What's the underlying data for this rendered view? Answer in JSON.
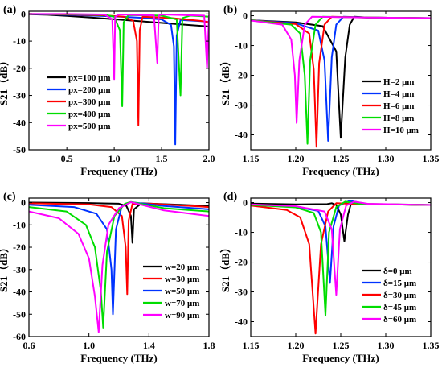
{
  "chart_data": [
    {
      "panel": "(a)",
      "type": "line",
      "xlabel": "Frequency (THz)",
      "ylabel": "S21（dB）",
      "xlim": [
        0.1,
        2.0
      ],
      "ylim": [
        -50,
        1
      ],
      "xticks": [
        0.5,
        1.0,
        1.5,
        2.0
      ],
      "xtick_labels": [
        "0.5",
        "1.0",
        "1.5",
        "2.0"
      ],
      "yticks": [
        0,
        -10,
        -20,
        -30,
        -40,
        -50
      ],
      "ytick_labels": [
        "0",
        "-10",
        "-20",
        "-30",
        "-40",
        "-50"
      ],
      "legend_position": "bottom-left",
      "series": [
        {
          "name": "px=100 μm",
          "color": "#000000",
          "points": [
            [
              0.1,
              -0.1
            ],
            [
              0.3,
              -0.3
            ],
            [
              0.5,
              -0.7
            ],
            [
              0.8,
              -1.4
            ],
            [
              1.1,
              -2.2
            ],
            [
              1.4,
              -3.0
            ],
            [
              1.7,
              -3.8
            ],
            [
              2.0,
              -4.6
            ]
          ]
        },
        {
          "name": "px=200 μm",
          "color": "#0033ff",
          "points": [
            [
              0.1,
              -0.05
            ],
            [
              0.5,
              -0.3
            ],
            [
              1.0,
              -0.9
            ],
            [
              1.3,
              -1.4
            ],
            [
              1.5,
              -2.0
            ],
            [
              1.6,
              -4.0
            ],
            [
              1.63,
              -12
            ],
            [
              1.645,
              -48
            ],
            [
              1.66,
              -8
            ],
            [
              1.7,
              -2.2
            ],
            [
              1.9,
              -2.6
            ],
            [
              2.0,
              -2.9
            ]
          ]
        },
        {
          "name": "px=300 μm",
          "color": "#ff0000",
          "points": [
            [
              0.1,
              0
            ],
            [
              0.5,
              -0.2
            ],
            [
              0.9,
              -0.5
            ],
            [
              1.1,
              -1.0
            ],
            [
              1.2,
              -2.5
            ],
            [
              1.24,
              -10
            ],
            [
              1.255,
              -41
            ],
            [
              1.27,
              -6
            ],
            [
              1.3,
              -1.0
            ],
            [
              1.6,
              -1.5
            ],
            [
              1.75,
              -2.0
            ],
            [
              1.9,
              -2.5
            ],
            [
              2.0,
              -3.0
            ]
          ]
        },
        {
          "name": "px=400 μm",
          "color": "#00dd00",
          "points": [
            [
              0.1,
              0
            ],
            [
              0.5,
              -0.1
            ],
            [
              0.9,
              -0.3
            ],
            [
              1.0,
              -1.0
            ],
            [
              1.06,
              -6
            ],
            [
              1.085,
              -34
            ],
            [
              1.1,
              -3
            ],
            [
              1.15,
              -0.4
            ],
            [
              1.5,
              -0.6
            ],
            [
              1.66,
              -2.0
            ],
            [
              1.7,
              -30
            ],
            [
              1.72,
              -1.5
            ],
            [
              1.8,
              -0.6
            ],
            [
              2.0,
              -1.0
            ]
          ]
        },
        {
          "name": "px=500 μm",
          "color": "#ff00ff",
          "points": [
            [
              0.1,
              0
            ],
            [
              0.5,
              0
            ],
            [
              0.9,
              -0.2
            ],
            [
              0.98,
              -2
            ],
            [
              1.0,
              -24
            ],
            [
              1.01,
              -1
            ],
            [
              1.05,
              -0.2
            ],
            [
              1.42,
              -0.5
            ],
            [
              1.455,
              -18
            ],
            [
              1.47,
              -0.6
            ],
            [
              1.5,
              -0.2
            ],
            [
              1.95,
              -0.6
            ],
            [
              1.98,
              -20
            ],
            [
              2.0,
              -0.5
            ]
          ]
        }
      ]
    },
    {
      "panel": "(b)",
      "type": "line",
      "xlabel": "Frequency (THz)",
      "ylabel": "S21（dB）",
      "xlim": [
        1.15,
        1.35
      ],
      "ylim": [
        -45,
        1.5
      ],
      "xticks": [
        1.15,
        1.2,
        1.25,
        1.3,
        1.35
      ],
      "xtick_labels": [
        "1.15",
        "1.20",
        "1.25",
        "1.30",
        "1.35"
      ],
      "yticks": [
        0,
        -10,
        -20,
        -30,
        -40
      ],
      "ytick_labels": [
        "0",
        "-10",
        "-20",
        "-30",
        "-40"
      ],
      "legend_position": "bottom-right",
      "series": [
        {
          "name": "H=2 μm",
          "color": "#000000",
          "points": [
            [
              1.15,
              -1.5
            ],
            [
              1.2,
              -2.2
            ],
            [
              1.23,
              -3.5
            ],
            [
              1.245,
              -12
            ],
            [
              1.25,
              -41
            ],
            [
              1.255,
              -14
            ],
            [
              1.26,
              -3
            ],
            [
              1.265,
              -0.3
            ],
            [
              1.28,
              -0.6
            ],
            [
              1.35,
              -0.8
            ]
          ]
        },
        {
          "name": "H=4 μm",
          "color": "#0033ff",
          "points": [
            [
              1.15,
              -1.5
            ],
            [
              1.2,
              -2.5
            ],
            [
              1.225,
              -5
            ],
            [
              1.232,
              -15
            ],
            [
              1.236,
              -42
            ],
            [
              1.24,
              -14
            ],
            [
              1.245,
              -3
            ],
            [
              1.253,
              -0.3
            ],
            [
              1.28,
              -0.6
            ],
            [
              1.35,
              -0.8
            ]
          ]
        },
        {
          "name": "H=6 μm",
          "color": "#ff0000",
          "points": [
            [
              1.15,
              -1.5
            ],
            [
              1.2,
              -2.8
            ],
            [
              1.215,
              -6
            ],
            [
              1.22,
              -18
            ],
            [
              1.223,
              -44
            ],
            [
              1.226,
              -16
            ],
            [
              1.232,
              -3
            ],
            [
              1.24,
              -0.3
            ],
            [
              1.28,
              -0.6
            ],
            [
              1.35,
              -0.8
            ]
          ]
        },
        {
          "name": "H=8 μm",
          "color": "#00dd00",
          "points": [
            [
              1.15,
              -1.5
            ],
            [
              1.195,
              -3
            ],
            [
              1.205,
              -6
            ],
            [
              1.21,
              -20
            ],
            [
              1.213,
              -43
            ],
            [
              1.216,
              -15
            ],
            [
              1.222,
              -3
            ],
            [
              1.23,
              -0.3
            ],
            [
              1.28,
              -0.6
            ],
            [
              1.35,
              -0.8
            ]
          ]
        },
        {
          "name": "H=10 μm",
          "color": "#ff00ff",
          "points": [
            [
              1.15,
              -1.6
            ],
            [
              1.185,
              -3
            ],
            [
              1.195,
              -8
            ],
            [
              1.199,
              -20
            ],
            [
              1.201,
              -36
            ],
            [
              1.204,
              -15
            ],
            [
              1.21,
              -3
            ],
            [
              1.218,
              -0.3
            ],
            [
              1.28,
              -0.6
            ],
            [
              1.35,
              -0.8
            ]
          ]
        }
      ]
    },
    {
      "panel": "(c)",
      "type": "line",
      "xlabel": "Frequency (THz)",
      "ylabel": "S21（dB）",
      "xlim": [
        0.6,
        1.8
      ],
      "ylim": [
        -60,
        2
      ],
      "xticks": [
        0.6,
        1.0,
        1.4,
        1.8
      ],
      "xtick_labels": [
        "0.6",
        "1.0",
        "1.4",
        "1.8"
      ],
      "yticks": [
        0,
        -10,
        -20,
        -30,
        -40,
        -50,
        -60
      ],
      "ytick_labels": [
        "0",
        "-10",
        "-20",
        "-30",
        "-40",
        "-50",
        "-60"
      ],
      "legend_position": "bottom-right",
      "series": [
        {
          "name": "w=20 μm",
          "color": "#000000",
          "points": [
            [
              0.6,
              0
            ],
            [
              1.0,
              -0.2
            ],
            [
              1.2,
              -0.5
            ],
            [
              1.25,
              -1.5
            ],
            [
              1.28,
              -6
            ],
            [
              1.29,
              -18
            ],
            [
              1.3,
              -3
            ],
            [
              1.35,
              -0.3
            ],
            [
              1.8,
              -1.5
            ]
          ]
        },
        {
          "name": "w=30 μm",
          "color": "#ff0000",
          "points": [
            [
              0.6,
              -0.3
            ],
            [
              1.0,
              -0.8
            ],
            [
              1.15,
              -2
            ],
            [
              1.22,
              -6
            ],
            [
              1.245,
              -20
            ],
            [
              1.255,
              -41
            ],
            [
              1.265,
              -8
            ],
            [
              1.29,
              -0.6
            ],
            [
              1.4,
              -0.4
            ],
            [
              1.8,
              -2.0
            ]
          ]
        },
        {
          "name": "w=50 μm",
          "color": "#0033ff",
          "points": [
            [
              0.6,
              -1.0
            ],
            [
              0.9,
              -2.0
            ],
            [
              1.05,
              -5
            ],
            [
              1.12,
              -12
            ],
            [
              1.15,
              -30
            ],
            [
              1.16,
              -50
            ],
            [
              1.18,
              -12
            ],
            [
              1.22,
              -1.5
            ],
            [
              1.28,
              0.2
            ],
            [
              1.5,
              -1.5
            ],
            [
              1.8,
              -3.0
            ]
          ]
        },
        {
          "name": "w=70 μm",
          "color": "#00dd00",
          "points": [
            [
              0.6,
              -2.0
            ],
            [
              0.85,
              -4
            ],
            [
              0.98,
              -10
            ],
            [
              1.04,
              -20
            ],
            [
              1.08,
              -40
            ],
            [
              1.095,
              -56
            ],
            [
              1.12,
              -22
            ],
            [
              1.17,
              -6
            ],
            [
              1.24,
              -0.5
            ],
            [
              1.28,
              0.3
            ],
            [
              1.5,
              -2.5
            ],
            [
              1.8,
              -4.0
            ]
          ]
        },
        {
          "name": "w=90 μm",
          "color": "#ff00ff",
          "points": [
            [
              0.6,
              -4.0
            ],
            [
              0.8,
              -7
            ],
            [
              0.93,
              -14
            ],
            [
              1.0,
              -25
            ],
            [
              1.04,
              -42
            ],
            [
              1.065,
              -58
            ],
            [
              1.09,
              -28
            ],
            [
              1.13,
              -10
            ],
            [
              1.2,
              -2.5
            ],
            [
              1.28,
              0.2
            ],
            [
              1.5,
              -3.5
            ],
            [
              1.8,
              -6.0
            ]
          ]
        }
      ]
    },
    {
      "panel": "(d)",
      "type": "line",
      "xlabel": "Frequency (THz)",
      "ylabel": "S21（dB）",
      "xlim": [
        1.15,
        1.35
      ],
      "ylim": [
        -45,
        1.5
      ],
      "xticks": [
        1.15,
        1.2,
        1.25,
        1.3,
        1.35
      ],
      "xtick_labels": [
        "1.15",
        "1.20",
        "1.25",
        "1.30",
        "1.35"
      ],
      "yticks": [
        0,
        -10,
        -20,
        -30,
        -40
      ],
      "ytick_labels": [
        "0",
        "-10",
        "-20",
        "-30",
        "-40"
      ],
      "legend_position": "bottom-right",
      "series": [
        {
          "name": "δ=0 μm",
          "color": "#000000",
          "points": [
            [
              1.15,
              -0.3
            ],
            [
              1.2,
              -0.6
            ],
            [
              1.235,
              -0.5
            ],
            [
              1.24,
              -0.2
            ],
            [
              1.245,
              -0.8
            ],
            [
              1.25,
              -4
            ],
            [
              1.254,
              -13
            ],
            [
              1.258,
              -4
            ],
            [
              1.262,
              0.2
            ],
            [
              1.275,
              -0.5
            ],
            [
              1.35,
              -0.8
            ]
          ]
        },
        {
          "name": "δ=15 μm",
          "color": "#0033ff",
          "points": [
            [
              1.15,
              -0.8
            ],
            [
              1.2,
              -1.4
            ],
            [
              1.225,
              -2.8
            ],
            [
              1.233,
              -8
            ],
            [
              1.238,
              -27
            ],
            [
              1.242,
              -8
            ],
            [
              1.248,
              -1
            ],
            [
              1.26,
              0.6
            ],
            [
              1.28,
              -0.5
            ],
            [
              1.35,
              -0.8
            ]
          ]
        },
        {
          "name": "δ=30 μm",
          "color": "#ff0000",
          "points": [
            [
              1.15,
              -1.0
            ],
            [
              1.19,
              -2.5
            ],
            [
              1.205,
              -5
            ],
            [
              1.215,
              -14
            ],
            [
              1.222,
              -44
            ],
            [
              1.228,
              -14
            ],
            [
              1.236,
              -3
            ],
            [
              1.245,
              -0.2
            ],
            [
              1.26,
              -0.4
            ],
            [
              1.35,
              -0.8
            ]
          ]
        },
        {
          "name": "δ=45 μm",
          "color": "#00dd00",
          "points": [
            [
              1.15,
              -0.8
            ],
            [
              1.2,
              -1.6
            ],
            [
              1.22,
              -3.5
            ],
            [
              1.228,
              -10
            ],
            [
              1.233,
              -38
            ],
            [
              1.237,
              -10
            ],
            [
              1.245,
              -1.5
            ],
            [
              1.255,
              0.3
            ],
            [
              1.27,
              -0.4
            ],
            [
              1.35,
              -0.8
            ]
          ]
        },
        {
          "name": "δ=60 μm",
          "color": "#ff00ff",
          "points": [
            [
              1.15,
              -0.6
            ],
            [
              1.2,
              -1.2
            ],
            [
              1.232,
              -3
            ],
            [
              1.24,
              -9
            ],
            [
              1.245,
              -31
            ],
            [
              1.249,
              -9
            ],
            [
              1.256,
              -1
            ],
            [
              1.265,
              0.3
            ],
            [
              1.28,
              -0.4
            ],
            [
              1.35,
              -0.8
            ]
          ]
        }
      ]
    }
  ]
}
